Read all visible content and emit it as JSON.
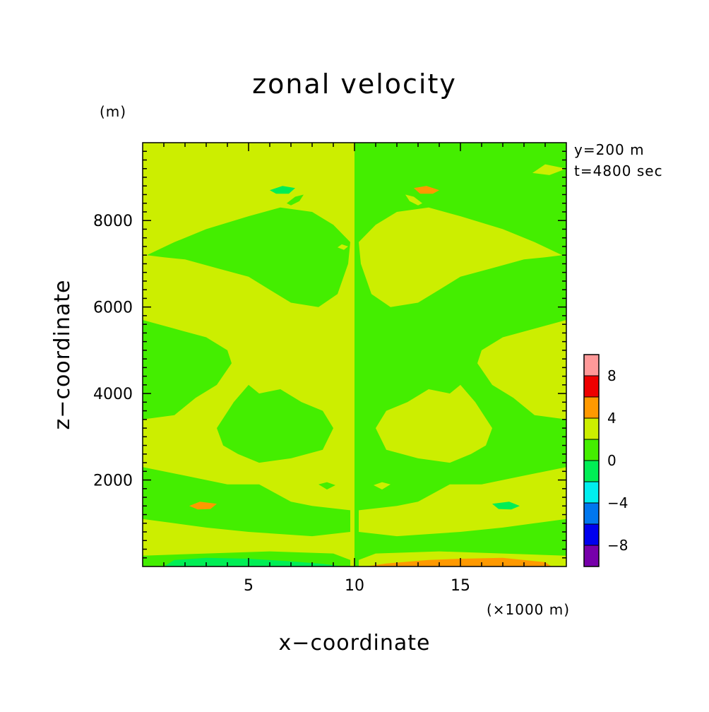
{
  "chart_data": {
    "type": "heatmap",
    "title": "zonal velocity",
    "xlabel": "x−coordinate",
    "ylabel": "z−coordinate",
    "x_unit": "(×1000 m)",
    "y_unit": "(m)",
    "annotations": [
      "y=200 m",
      "t=4800 sec"
    ],
    "xlim": [
      0,
      20
    ],
    "ylim": [
      0,
      9800
    ],
    "x_ticks": [
      5,
      10,
      15
    ],
    "x_tick_labels": [
      "5",
      "10",
      "15"
    ],
    "y_ticks": [
      2000,
      4000,
      6000,
      8000
    ],
    "y_tick_labels": [
      "2000",
      "4000",
      "6000",
      "8000"
    ],
    "colorbar": {
      "levels": [
        -10,
        -8,
        -6,
        -4,
        -2,
        0,
        2,
        4,
        6,
        8,
        10
      ],
      "colors": [
        "#7700aa",
        "#0000ee",
        "#0077ee",
        "#00eeee",
        "#00ee55",
        "#44ee00",
        "#ccee00",
        "#ff9900",
        "#ee0000",
        "#ff9999"
      ],
      "tick_values": [
        -8,
        -4,
        0,
        4,
        8
      ],
      "tick_labels": [
        "−8",
        "−4",
        "0",
        "4",
        "8"
      ]
    },
    "background_level": 1,
    "regions": [
      {
        "level": 0,
        "points": [
          [
            10,
            0
          ],
          [
            20,
            0
          ],
          [
            20,
            9800
          ],
          [
            10,
            9800
          ]
        ]
      },
      {
        "level": 1,
        "points": [
          [
            0,
            9100
          ],
          [
            0.8,
            9300
          ],
          [
            1.5,
            9200
          ],
          [
            0.8,
            9050
          ]
        ]
      },
      {
        "level": 1,
        "points": [
          [
            18.4,
            9100
          ],
          [
            19,
            9300
          ],
          [
            20,
            9200
          ],
          [
            19.2,
            9050
          ]
        ]
      },
      {
        "level": 0,
        "points": [
          [
            0.2,
            7200
          ],
          [
            1.5,
            7500
          ],
          [
            3,
            7800
          ],
          [
            5,
            8100
          ],
          [
            6.5,
            8300
          ],
          [
            8,
            8200
          ],
          [
            9,
            7900
          ],
          [
            9.8,
            7500
          ],
          [
            9.7,
            7000
          ],
          [
            9.2,
            6300
          ],
          [
            8.3,
            6000
          ],
          [
            7,
            6100
          ],
          [
            6,
            6400
          ],
          [
            5,
            6700
          ],
          [
            3.5,
            6900
          ],
          [
            2,
            7100
          ],
          [
            1,
            7150
          ]
        ]
      },
      {
        "level": 1,
        "points": [
          [
            19.8,
            7200
          ],
          [
            18.5,
            7500
          ],
          [
            17,
            7800
          ],
          [
            15,
            8100
          ],
          [
            13.5,
            8300
          ],
          [
            12,
            8200
          ],
          [
            11,
            7900
          ],
          [
            10.2,
            7500
          ],
          [
            10.3,
            7000
          ],
          [
            10.8,
            6300
          ],
          [
            11.7,
            6000
          ],
          [
            13,
            6100
          ],
          [
            14,
            6400
          ],
          [
            15,
            6700
          ],
          [
            16.5,
            6900
          ],
          [
            18,
            7100
          ],
          [
            19,
            7150
          ]
        ]
      },
      {
        "level": 0,
        "points": [
          [
            0,
            5700
          ],
          [
            1.5,
            5500
          ],
          [
            3,
            5300
          ],
          [
            4,
            5000
          ],
          [
            4.2,
            4700
          ],
          [
            3.5,
            4200
          ],
          [
            2.5,
            3900
          ],
          [
            1.5,
            3500
          ],
          [
            0,
            3400
          ]
        ]
      },
      {
        "level": 1,
        "points": [
          [
            20,
            5700
          ],
          [
            18.5,
            5500
          ],
          [
            17,
            5300
          ],
          [
            16,
            5000
          ],
          [
            15.8,
            4700
          ],
          [
            16.5,
            4200
          ],
          [
            17.5,
            3900
          ],
          [
            18.5,
            3500
          ],
          [
            20,
            3400
          ]
        ]
      },
      {
        "level": 0,
        "points": [
          [
            3.5,
            3200
          ],
          [
            4.3,
            3800
          ],
          [
            5,
            4200
          ],
          [
            5.5,
            4000
          ],
          [
            6.5,
            4100
          ],
          [
            7.5,
            3800
          ],
          [
            8.5,
            3600
          ],
          [
            9,
            3200
          ],
          [
            8.5,
            2700
          ],
          [
            7,
            2500
          ],
          [
            5.5,
            2400
          ],
          [
            4.5,
            2600
          ],
          [
            3.8,
            2800
          ]
        ]
      },
      {
        "level": 1,
        "points": [
          [
            16.5,
            3200
          ],
          [
            15.7,
            3800
          ],
          [
            15,
            4200
          ],
          [
            14.5,
            4000
          ],
          [
            13.5,
            4100
          ],
          [
            12.5,
            3800
          ],
          [
            11.5,
            3600
          ],
          [
            11,
            3200
          ],
          [
            11.5,
            2700
          ],
          [
            13,
            2500
          ],
          [
            14.5,
            2400
          ],
          [
            15.5,
            2600
          ],
          [
            16.2,
            2800
          ]
        ]
      },
      {
        "level": 0,
        "points": [
          [
            0,
            2300
          ],
          [
            2,
            2100
          ],
          [
            4,
            1900
          ],
          [
            5.5,
            1900
          ],
          [
            7,
            1500
          ],
          [
            8,
            1400
          ],
          [
            9.8,
            1300
          ],
          [
            9.8,
            800
          ],
          [
            8,
            700
          ],
          [
            5,
            800
          ],
          [
            3,
            900
          ],
          [
            1.5,
            1000
          ],
          [
            0,
            1100
          ]
        ]
      },
      {
        "level": 1,
        "points": [
          [
            20,
            2300
          ],
          [
            18,
            2100
          ],
          [
            16,
            1900
          ],
          [
            14.5,
            1900
          ],
          [
            13,
            1500
          ],
          [
            12,
            1400
          ],
          [
            10.2,
            1300
          ],
          [
            10.2,
            800
          ],
          [
            12,
            700
          ],
          [
            15,
            800
          ],
          [
            17,
            900
          ],
          [
            18.5,
            1000
          ],
          [
            20,
            1100
          ]
        ]
      },
      {
        "level": 0,
        "points": [
          [
            0,
            250
          ],
          [
            3,
            300
          ],
          [
            6,
            350
          ],
          [
            9,
            300
          ],
          [
            9.8,
            150
          ],
          [
            9.8,
            0
          ],
          [
            0,
            0
          ]
        ]
      },
      {
        "level": 1,
        "points": [
          [
            20,
            250
          ],
          [
            17,
            300
          ],
          [
            14,
            350
          ],
          [
            11,
            300
          ],
          [
            10.2,
            150
          ],
          [
            10.2,
            0
          ],
          [
            20,
            0
          ]
        ]
      },
      {
        "level": -1,
        "points": [
          [
            1,
            0
          ],
          [
            1.5,
            150
          ],
          [
            3,
            200
          ],
          [
            5,
            180
          ],
          [
            7,
            120
          ],
          [
            8.5,
            60
          ],
          [
            9.5,
            0
          ]
        ]
      },
      {
        "level": 2,
        "points": [
          [
            10.5,
            0
          ],
          [
            11.5,
            70
          ],
          [
            13.5,
            150
          ],
          [
            15,
            180
          ],
          [
            17,
            200
          ],
          [
            19,
            100
          ],
          [
            19.3,
            0
          ]
        ]
      },
      {
        "level": -1,
        "points": [
          [
            6,
            8700
          ],
          [
            6.6,
            8800
          ],
          [
            7.2,
            8750
          ],
          [
            6.9,
            8620
          ],
          [
            6.3,
            8620
          ]
        ]
      },
      {
        "level": 2,
        "points": [
          [
            14,
            8700
          ],
          [
            13.4,
            8800
          ],
          [
            12.8,
            8750
          ],
          [
            13.1,
            8620
          ],
          [
            13.7,
            8620
          ]
        ]
      },
      {
        "level": 0,
        "points": [
          [
            6.8,
            8400
          ],
          [
            7.2,
            8550
          ],
          [
            7.6,
            8600
          ],
          [
            7.4,
            8450
          ],
          [
            7,
            8350
          ]
        ]
      },
      {
        "level": 1,
        "points": [
          [
            13.2,
            8400
          ],
          [
            12.8,
            8550
          ],
          [
            12.4,
            8600
          ],
          [
            12.6,
            8450
          ],
          [
            13,
            8350
          ]
        ]
      },
      {
        "level": 2,
        "points": [
          [
            2.2,
            1400
          ],
          [
            2.7,
            1500
          ],
          [
            3.5,
            1450
          ],
          [
            3.2,
            1330
          ],
          [
            2.6,
            1320
          ]
        ]
      },
      {
        "level": -1,
        "points": [
          [
            17.8,
            1400
          ],
          [
            17.3,
            1500
          ],
          [
            16.5,
            1450
          ],
          [
            16.8,
            1330
          ],
          [
            17.4,
            1320
          ]
        ]
      },
      {
        "level": 0,
        "points": [
          [
            8.3,
            1900
          ],
          [
            8.7,
            1950
          ],
          [
            9.1,
            1880
          ],
          [
            8.7,
            1780
          ]
        ]
      },
      {
        "level": 1,
        "points": [
          [
            11.7,
            1900
          ],
          [
            11.3,
            1950
          ],
          [
            10.9,
            1880
          ],
          [
            11.3,
            1780
          ]
        ]
      },
      {
        "level": 1,
        "points": [
          [
            9.2,
            7380
          ],
          [
            9.4,
            7450
          ],
          [
            9.7,
            7400
          ],
          [
            9.5,
            7320
          ]
        ]
      }
    ]
  }
}
